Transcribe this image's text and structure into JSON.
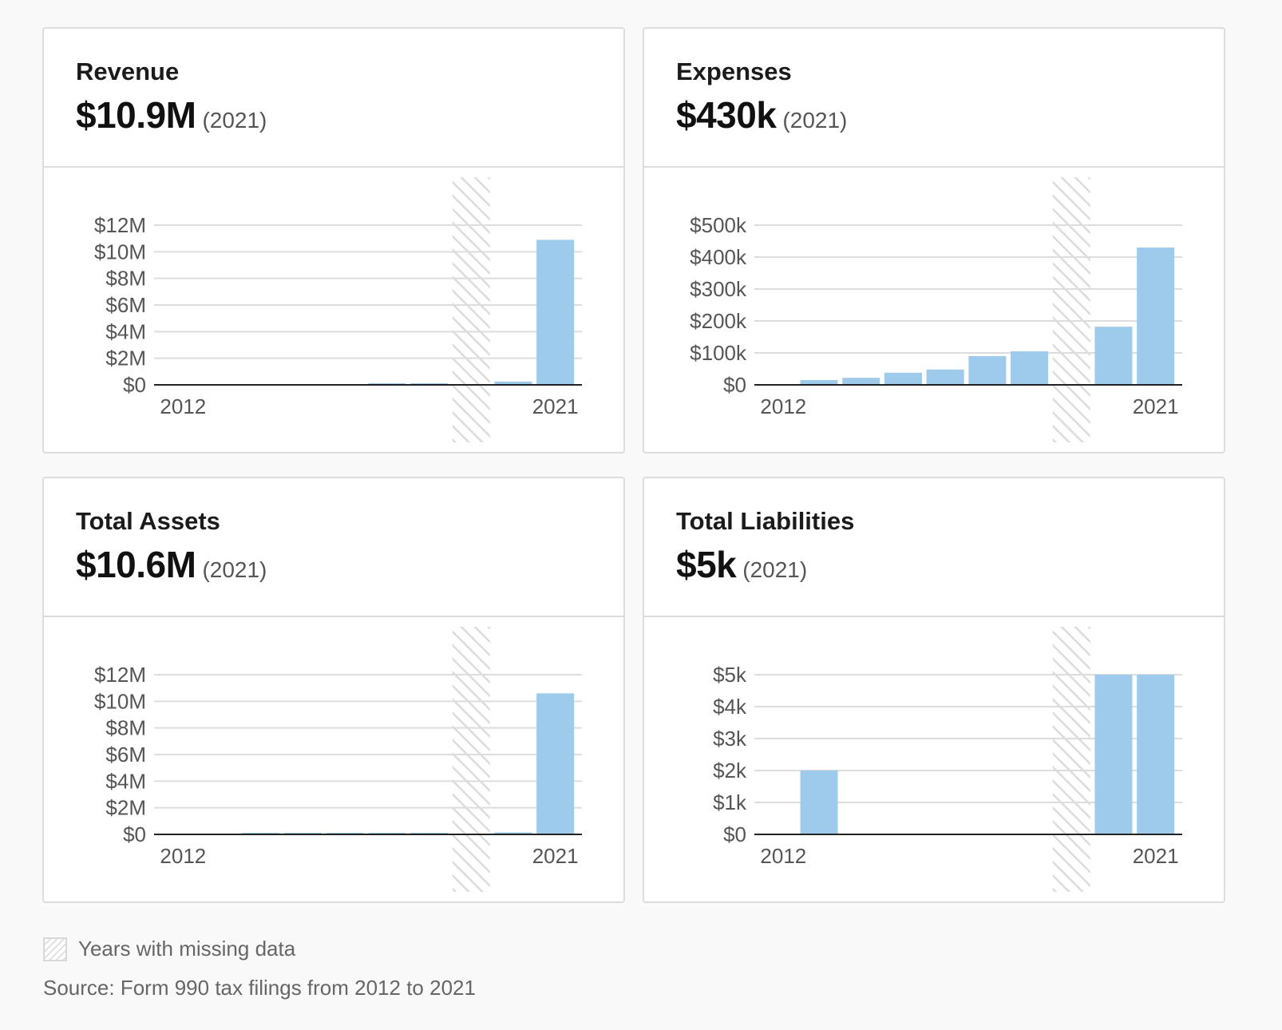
{
  "cards": [
    {
      "title": "Revenue",
      "value": "$10.9M",
      "year_label": "(2021)",
      "chart_data": {
        "type": "bar",
        "x": [
          2012,
          2013,
          2014,
          2015,
          2016,
          2017,
          2018,
          2019,
          2020,
          2021
        ],
        "values": [
          0,
          0,
          0,
          0,
          0,
          20000,
          100000,
          null,
          250000,
          10900000
        ],
        "missing_years": [
          2019
        ],
        "ylim": [
          0,
          12000000
        ],
        "y_ticks": [
          0,
          2000000,
          4000000,
          6000000,
          8000000,
          10000000,
          12000000
        ],
        "y_tick_labels": [
          "$0",
          "$2M",
          "$4M",
          "$6M",
          "$8M",
          "$10M",
          "$12M"
        ],
        "x_tick_labels": [
          "2012",
          "2021"
        ],
        "grid": true
      }
    },
    {
      "title": "Expenses",
      "value": "$430k",
      "year_label": "(2021)",
      "chart_data": {
        "type": "bar",
        "x": [
          2012,
          2013,
          2014,
          2015,
          2016,
          2017,
          2018,
          2019,
          2020,
          2021
        ],
        "values": [
          0,
          15000,
          22000,
          38000,
          48000,
          90000,
          105000,
          null,
          182000,
          430000
        ],
        "missing_years": [
          2019
        ],
        "ylim": [
          0,
          500000
        ],
        "y_ticks": [
          0,
          100000,
          200000,
          300000,
          400000,
          500000
        ],
        "y_tick_labels": [
          "$0",
          "$100k",
          "$200k",
          "$300k",
          "$400k",
          "$500k"
        ],
        "x_tick_labels": [
          "2012",
          "2021"
        ],
        "grid": true
      }
    },
    {
      "title": "Total Assets",
      "value": "$10.6M",
      "year_label": "(2021)",
      "chart_data": {
        "type": "bar",
        "x": [
          2012,
          2013,
          2014,
          2015,
          2016,
          2017,
          2018,
          2019,
          2020,
          2021
        ],
        "values": [
          0,
          0,
          50000,
          60000,
          70000,
          80000,
          100000,
          null,
          150000,
          10600000
        ],
        "missing_years": [
          2019
        ],
        "ylim": [
          0,
          12000000
        ],
        "y_ticks": [
          0,
          2000000,
          4000000,
          6000000,
          8000000,
          10000000,
          12000000
        ],
        "y_tick_labels": [
          "$0",
          "$2M",
          "$4M",
          "$6M",
          "$8M",
          "$10M",
          "$12M"
        ],
        "x_tick_labels": [
          "2012",
          "2021"
        ],
        "grid": true
      }
    },
    {
      "title": "Total Liabilities",
      "value": "$5k",
      "year_label": "(2021)",
      "chart_data": {
        "type": "bar",
        "x": [
          2012,
          2013,
          2014,
          2015,
          2016,
          2017,
          2018,
          2019,
          2020,
          2021
        ],
        "values": [
          0,
          2000,
          0,
          0,
          0,
          0,
          0,
          null,
          5000,
          5000
        ],
        "missing_years": [
          2019
        ],
        "ylim": [
          0,
          5000
        ],
        "y_ticks": [
          0,
          1000,
          2000,
          3000,
          4000,
          5000
        ],
        "y_tick_labels": [
          "$0",
          "$1k",
          "$2k",
          "$3k",
          "$4k",
          "$5k"
        ],
        "x_tick_labels": [
          "2012",
          "2021"
        ],
        "grid": true
      }
    }
  ],
  "colors": {
    "bar": "#9ecbeb",
    "grid": "#dddddd",
    "axis": "#222222",
    "hatch": "#dcdcdc",
    "tick_text": "#555555"
  },
  "legend": {
    "missing_label": "Years with missing data"
  },
  "source": "Source: Form 990 tax filings from 2012 to 2021"
}
